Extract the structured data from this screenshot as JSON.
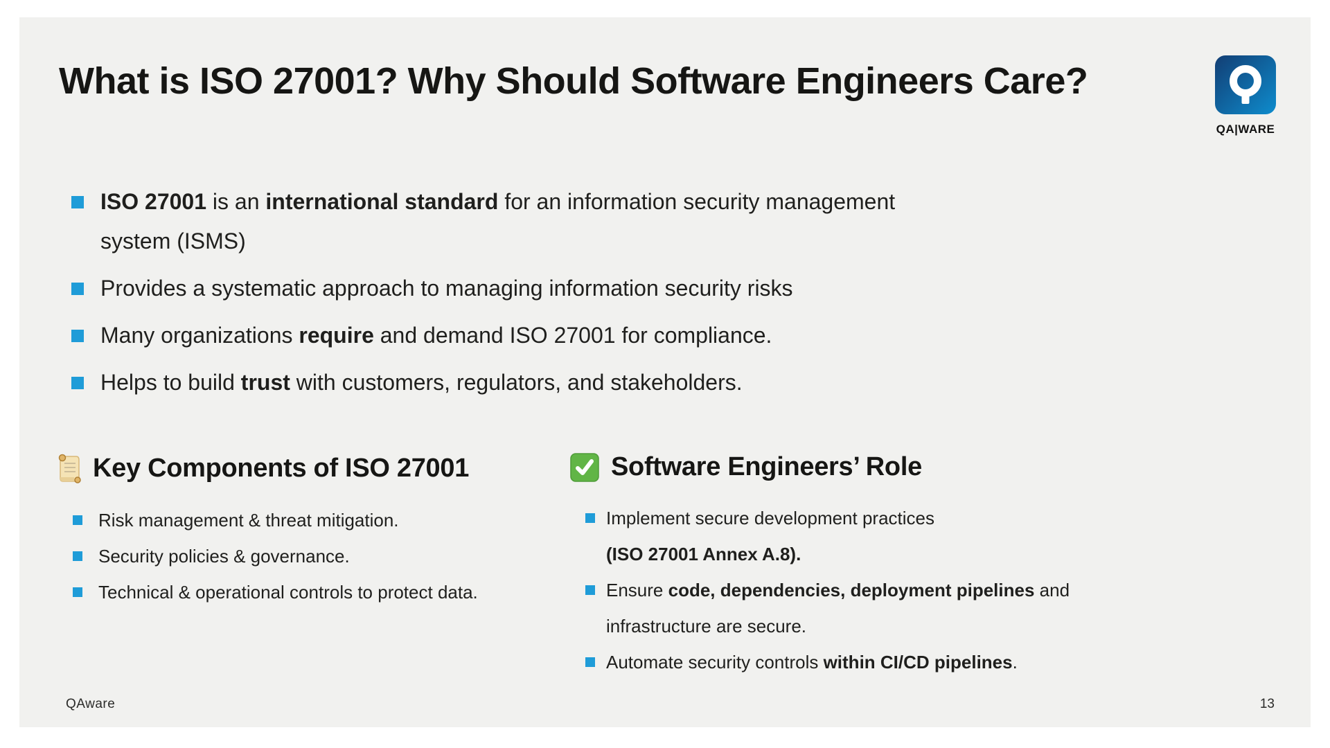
{
  "slide": {
    "title": "What is ISO 27001? Why Should Software Engineers Care?",
    "background_color": "#f1f1ef",
    "frame_color": "#ffffff",
    "accent_color": "#1f9cd8",
    "logo": {
      "icon": "qaware-magnifier-icon",
      "wordmark": "QA|WARE",
      "gradient_start": "#123e74",
      "gradient_end": "#0e8ccd"
    },
    "main_bullets": [
      [
        {
          "t": "ISO 27001",
          "b": 1
        },
        {
          "t": " is an ",
          "b": 0
        },
        {
          "t": "international standard",
          "b": 1
        },
        {
          "t": " for an information security management",
          "b": 0
        },
        {
          "br": 1
        },
        {
          "t": "system (ISMS)",
          "b": 0
        }
      ],
      [
        {
          "t": "Provides a systematic approach to managing information security risks",
          "b": 0
        }
      ],
      [
        {
          "t": "Many organizations ",
          "b": 0
        },
        {
          "t": "require",
          "b": 1
        },
        {
          "t": " and demand ISO 27001 for compliance.",
          "b": 0
        }
      ],
      [
        {
          "t": "Helps to build ",
          "b": 0
        },
        {
          "t": "trust",
          "b": 1
        },
        {
          "t": " with customers, regulators, and stakeholders.",
          "b": 0
        }
      ]
    ],
    "columns": [
      {
        "icon": "scroll-icon",
        "heading": "Key Components of ISO 27001",
        "items": [
          [
            {
              "t": "Risk management & threat mitigation.",
              "b": 0
            }
          ],
          [
            {
              "t": "Security policies & governance.",
              "b": 0
            }
          ],
          [
            {
              "t": "Technical & operational controls to protect data.",
              "b": 0
            }
          ]
        ]
      },
      {
        "icon": "check-mark-icon",
        "heading": "Software Engineers’ Role",
        "items": [
          [
            {
              "t": "Implement secure development practices",
              "b": 0
            },
            {
              "br": 1
            },
            {
              "t": "(ISO 27001 Annex A.8).",
              "b": 1
            }
          ],
          [
            {
              "t": "Ensure ",
              "b": 0
            },
            {
              "t": "code, dependencies, deployment pipelines",
              "b": 1
            },
            {
              "t": " and infrastructure are secure.",
              "b": 0
            }
          ],
          [
            {
              "t": "Automate security controls ",
              "b": 0
            },
            {
              "t": "within CI/CD pipelines",
              "b": 1
            },
            {
              "t": ".",
              "b": 0
            }
          ]
        ]
      }
    ],
    "footer": {
      "company": "QAware",
      "page_number": "13"
    }
  }
}
